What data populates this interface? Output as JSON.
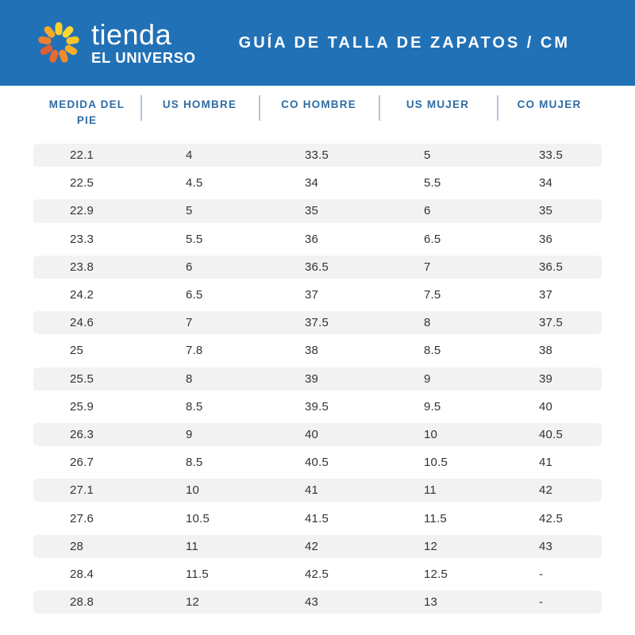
{
  "header": {
    "logo": {
      "name_line1": "tienda",
      "name_line2": "EL UNIVERSO",
      "petal_colors": [
        "#FFD02A",
        "#FFD834",
        "#FFC528",
        "#F9AE27",
        "#F08C2C",
        "#E56A31",
        "#DF5F30",
        "#EE7F2F",
        "#F8A827"
      ]
    },
    "title": "GUÍA DE TALLA DE ZAPATOS / CM"
  },
  "colors": {
    "band_blue": "#2171B7",
    "column_header_text": "#2E6CA4",
    "divider": "#B3C5D6",
    "stripe": "#F2F2F2",
    "cell_text": "#333333",
    "logo_text": "#FFFFFF"
  },
  "table": {
    "columns": [
      "MEDIDA DEL PIE",
      "US HOMBRE",
      "CO HOMBRE",
      "US MUJER",
      "CO MUJER"
    ],
    "column_keys": [
      "medida_del_pie",
      "us_hombre",
      "co_hombre",
      "us_mujer",
      "co_mujer"
    ],
    "rows": [
      [
        "22.1",
        "4",
        "33.5",
        "5",
        "33.5"
      ],
      [
        "22.5",
        "4.5",
        "34",
        "5.5",
        "34"
      ],
      [
        "22.9",
        "5",
        "35",
        "6",
        "35"
      ],
      [
        "23.3",
        "5.5",
        "36",
        "6.5",
        "36"
      ],
      [
        "23.8",
        "6",
        "36.5",
        "7",
        "36.5"
      ],
      [
        "24.2",
        "6.5",
        "37",
        "7.5",
        "37"
      ],
      [
        "24.6",
        "7",
        "37.5",
        "8",
        "37.5"
      ],
      [
        "25",
        "7.8",
        "38",
        "8.5",
        "38"
      ],
      [
        "25.5",
        "8",
        "39",
        "9",
        "39"
      ],
      [
        "25.9",
        "8.5",
        "39.5",
        "9.5",
        "40"
      ],
      [
        "26.3",
        "9",
        "40",
        "10",
        "40.5"
      ],
      [
        "26.7",
        "8.5",
        "40.5",
        "10.5",
        "41"
      ],
      [
        "27.1",
        "10",
        "41",
        "11",
        "42"
      ],
      [
        "27.6",
        "10.5",
        "41.5",
        "11.5",
        "42.5"
      ],
      [
        "28",
        "11",
        "42",
        "12",
        "43"
      ],
      [
        "28.4",
        "11.5",
        "42.5",
        "12.5",
        "-"
      ],
      [
        "28.8",
        "12",
        "43",
        "13",
        "-"
      ]
    ]
  }
}
